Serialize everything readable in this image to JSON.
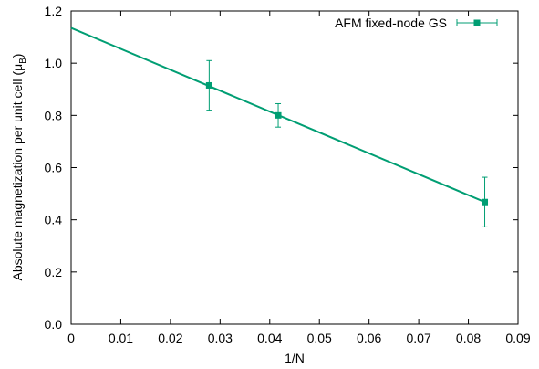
{
  "chart_data": {
    "type": "scatter",
    "xlabel": "1/N",
    "ylabel_main": "Absolute magnetization per unit cell (μ",
    "ylabel_sub": "B",
    "ylabel_close": ")",
    "xlim": [
      0,
      0.09
    ],
    "ylim": [
      0,
      1.2
    ],
    "x_ticks": [
      0,
      0.01,
      0.02,
      0.03,
      0.04,
      0.05,
      0.06,
      0.07,
      0.08,
      0.09
    ],
    "x_tick_labels": [
      "0",
      "0.01",
      "0.02",
      "0.03",
      "0.04",
      "0.05",
      "0.06",
      "0.07",
      "0.08",
      "0.09"
    ],
    "y_ticks": [
      0,
      0.2,
      0.4,
      0.6,
      0.8,
      1.0,
      1.2
    ],
    "y_tick_labels": [
      "0.0",
      "0.2",
      "0.4",
      "0.6",
      "0.8",
      "1.0",
      "1.2"
    ],
    "grid": false,
    "legend_position": "top-right",
    "series": [
      {
        "name": "AFM fixed-node GS",
        "color": "#009e73",
        "marker": "square",
        "x": [
          0.0278,
          0.0417,
          0.0833
        ],
        "y": [
          0.915,
          0.8,
          0.468
        ],
        "yerr": [
          0.095,
          0.045,
          0.095
        ]
      }
    ],
    "fit_line": {
      "color": "#009e73",
      "x": [
        0,
        0.0833
      ],
      "y": [
        1.135,
        0.468
      ]
    }
  }
}
